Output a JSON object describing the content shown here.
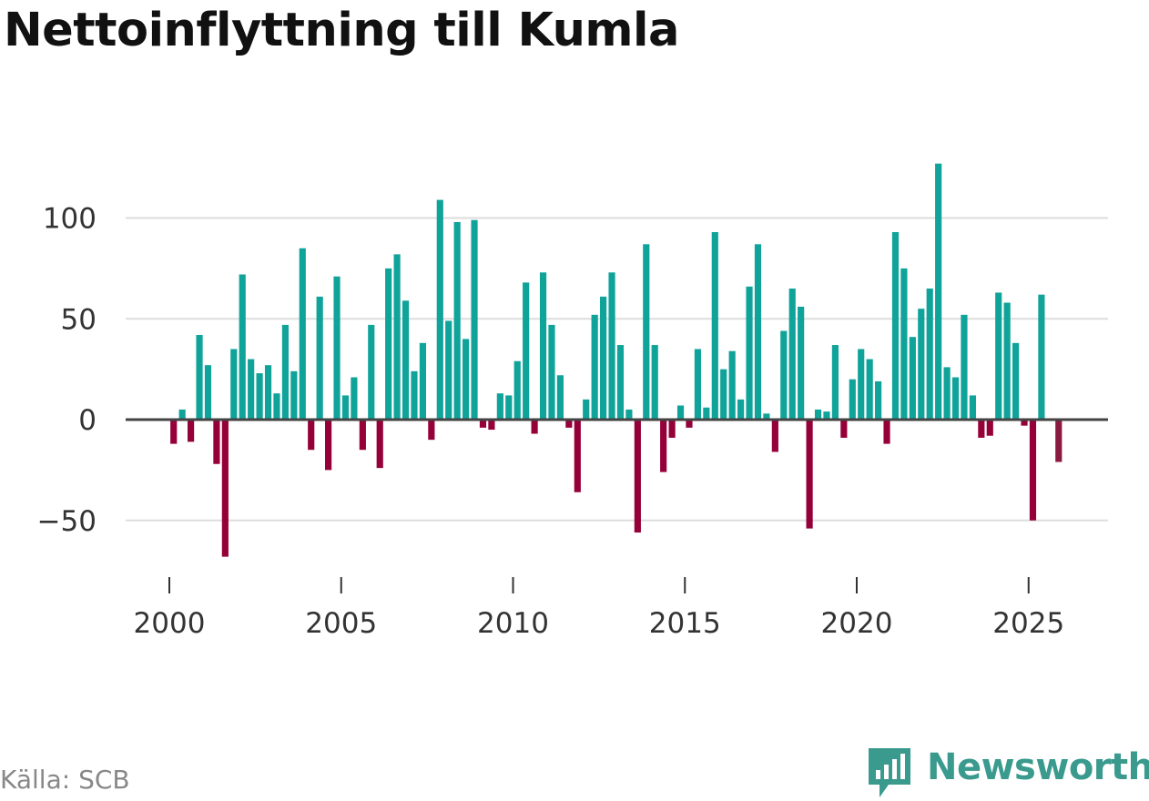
{
  "title": "Nettoinflyttning till Kumla",
  "source": "Källa: SCB",
  "brand": "Newsworthy",
  "colors": {
    "positive": "#0fa39a",
    "negative": "#950038",
    "negative_highlight": "#8a1a3f",
    "brand": "#3a9a8e",
    "grid": "#dddddd",
    "zero": "#444444"
  },
  "chart_data": {
    "type": "bar",
    "title": "Nettoinflyttning till Kumla",
    "xlabel": "",
    "ylabel": "",
    "frequency": "quarterly",
    "x_start": 2000.0,
    "ylim": [
      -72,
      128
    ],
    "xlim": [
      1999.55,
      2027.15
    ],
    "yticks": [
      -50,
      0,
      50,
      100
    ],
    "ytick_labels": [
      "−50",
      "0",
      "50",
      "100"
    ],
    "xticks": [
      2000,
      2005,
      2010,
      2015,
      2020,
      2025
    ],
    "xtick_labels": [
      "2000",
      "2005",
      "2010",
      "2015",
      "2020",
      "2025"
    ],
    "values": [
      -12,
      5,
      -11,
      42,
      27,
      -22,
      -68,
      35,
      72,
      30,
      23,
      27,
      13,
      47,
      24,
      85,
      -15,
      61,
      -25,
      71,
      12,
      21,
      -15,
      47,
      -24,
      75,
      82,
      59,
      24,
      38,
      -10,
      109,
      49,
      98,
      40,
      99,
      -4,
      -5,
      13,
      12,
      29,
      68,
      -7,
      73,
      47,
      22,
      -4,
      -36,
      10,
      52,
      61,
      73,
      37,
      5,
      -56,
      87,
      37,
      -26,
      -9,
      7,
      -4,
      35,
      6,
      93,
      25,
      34,
      10,
      66,
      87,
      3,
      -16,
      44,
      65,
      56,
      -54,
      5,
      4,
      37,
      -9,
      20,
      35,
      30,
      19,
      -12,
      93,
      75,
      41,
      55,
      65,
      127,
      26,
      21,
      52,
      12,
      -9,
      -8,
      63,
      58,
      38,
      -3,
      -50,
      62,
      0,
      -21
    ]
  }
}
